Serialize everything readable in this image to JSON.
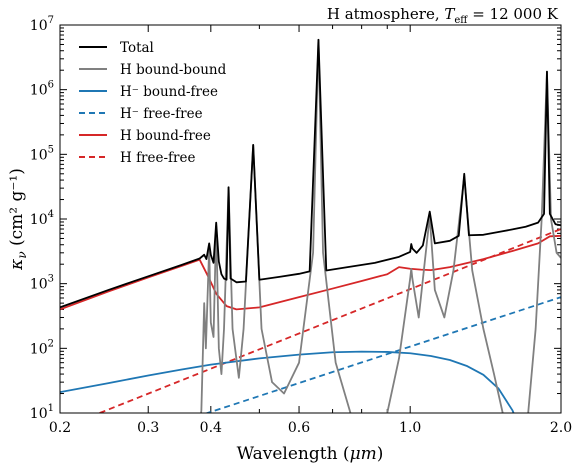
{
  "chart_data": {
    "type": "line",
    "title_prefix": "H atmosphere, ",
    "title_var": "T",
    "title_sub": "eff",
    "title_value": " = 12 000 K",
    "xlabel_prefix": "Wavelength (",
    "xlabel_unit": "μm",
    "xlabel_suffix": ")",
    "ylabel_var": "κ",
    "ylabel_sub": "ν",
    "ylabel_unit": "(cm² g⁻¹)",
    "xscale": "log",
    "yscale": "log",
    "xlim": [
      0.2,
      2.0
    ],
    "ylim": [
      10,
      10000000
    ],
    "x_ticks": [
      0.2,
      0.3,
      0.4,
      0.6,
      1.0,
      2.0
    ],
    "x_tick_labels": [
      "0.2",
      "0.3",
      "0.4",
      "0.6",
      "1.0",
      "2.0"
    ],
    "y_ticks": [
      10,
      100,
      1000,
      10000,
      100000,
      1000000,
      10000000
    ],
    "y_tick_mantissa": "10",
    "y_tick_exponents": [
      "1",
      "2",
      "3",
      "4",
      "5",
      "6",
      "7"
    ],
    "legend_position": "upper-left",
    "series": [
      {
        "name": "Total",
        "color": "#000000",
        "dash": "solid",
        "points": [
          [
            0.2,
            430
          ],
          [
            0.25,
            800
          ],
          [
            0.3,
            1300
          ],
          [
            0.35,
            1950
          ],
          [
            0.38,
            2450
          ],
          [
            0.388,
            2800
          ],
          [
            0.392,
            2400
          ],
          [
            0.397,
            4200
          ],
          [
            0.4,
            2800
          ],
          [
            0.405,
            2100
          ],
          [
            0.41,
            8800
          ],
          [
            0.415,
            2200
          ],
          [
            0.42,
            1400
          ],
          [
            0.425,
            1200
          ],
          [
            0.43,
            1150
          ],
          [
            0.434,
            31000
          ],
          [
            0.438,
            1200
          ],
          [
            0.45,
            1050
          ],
          [
            0.47,
            1080
          ],
          [
            0.486,
            140000
          ],
          [
            0.5,
            1150
          ],
          [
            0.55,
            1280
          ],
          [
            0.6,
            1420
          ],
          [
            0.63,
            1550
          ],
          [
            0.656,
            5900000
          ],
          [
            0.68,
            1600
          ],
          [
            0.75,
            1800
          ],
          [
            0.85,
            2100
          ],
          [
            0.95,
            2600
          ],
          [
            1.0,
            3100
          ],
          [
            1.005,
            4100
          ],
          [
            1.01,
            3500
          ],
          [
            1.03,
            3000
          ],
          [
            1.06,
            3900
          ],
          [
            1.094,
            13000
          ],
          [
            1.12,
            4200
          ],
          [
            1.2,
            4600
          ],
          [
            1.25,
            5500
          ],
          [
            1.282,
            50000
          ],
          [
            1.31,
            5600
          ],
          [
            1.4,
            5700
          ],
          [
            1.5,
            6300
          ],
          [
            1.6,
            6900
          ],
          [
            1.7,
            7600
          ],
          [
            1.8,
            8800
          ],
          [
            1.85,
            12000
          ],
          [
            1.875,
            1900000
          ],
          [
            1.9,
            12000
          ],
          [
            1.95,
            8300
          ],
          [
            2.0,
            8000
          ]
        ]
      },
      {
        "name": "H bound-bound",
        "color": "#808080",
        "dash": "solid",
        "points": [
          [
            0.37,
            1
          ],
          [
            0.383,
            11
          ],
          [
            0.388,
            500
          ],
          [
            0.391,
            100
          ],
          [
            0.397,
            3600
          ],
          [
            0.4,
            250
          ],
          [
            0.405,
            150
          ],
          [
            0.41,
            7800
          ],
          [
            0.415,
            100
          ],
          [
            0.42,
            40
          ],
          [
            0.425,
            200
          ],
          [
            0.434,
            31000
          ],
          [
            0.442,
            200
          ],
          [
            0.455,
            35
          ],
          [
            0.465,
            200
          ],
          [
            0.486,
            140000
          ],
          [
            0.505,
            200
          ],
          [
            0.53,
            30
          ],
          [
            0.56,
            20
          ],
          [
            0.6,
            60
          ],
          [
            0.64,
            3000
          ],
          [
            0.656,
            5900000
          ],
          [
            0.67,
            3000
          ],
          [
            0.71,
            60
          ],
          [
            0.76,
            10
          ],
          [
            0.8,
            1
          ],
          [
            0.88,
            1
          ],
          [
            0.9,
            10
          ],
          [
            0.95,
            70
          ],
          [
            1.0,
            1200
          ],
          [
            1.005,
            1700
          ],
          [
            1.01,
            1200
          ],
          [
            1.04,
            300
          ],
          [
            1.094,
            11000
          ],
          [
            1.12,
            800
          ],
          [
            1.17,
            300
          ],
          [
            1.22,
            1600
          ],
          [
            1.282,
            45000
          ],
          [
            1.33,
            1600
          ],
          [
            1.4,
            200
          ],
          [
            1.47,
            40
          ],
          [
            1.53,
            10
          ],
          [
            1.6,
            1
          ],
          [
            1.68,
            1
          ],
          [
            1.72,
            10
          ],
          [
            1.78,
            200
          ],
          [
            1.83,
            10000
          ],
          [
            1.875,
            1900000
          ],
          [
            1.91,
            10000
          ],
          [
            1.96,
            3000
          ],
          [
            2.0,
            2500
          ]
        ]
      },
      {
        "name": "H⁻ bound-free",
        "color": "#1f77b4",
        "dash": "solid",
        "points": [
          [
            0.2,
            21
          ],
          [
            0.25,
            29
          ],
          [
            0.3,
            38
          ],
          [
            0.35,
            47
          ],
          [
            0.4,
            56
          ],
          [
            0.5,
            70
          ],
          [
            0.6,
            80
          ],
          [
            0.7,
            87
          ],
          [
            0.8,
            89
          ],
          [
            0.9,
            88
          ],
          [
            1.0,
            84
          ],
          [
            1.1,
            76
          ],
          [
            1.2,
            66
          ],
          [
            1.3,
            53
          ],
          [
            1.4,
            39
          ],
          [
            1.5,
            24
          ],
          [
            1.6,
            11
          ],
          [
            1.64,
            7
          ]
        ]
      },
      {
        "name": "H⁻ free-free",
        "color": "#1f77b4",
        "dash": "dashed",
        "points": [
          [
            0.3,
            5
          ],
          [
            2.0,
            620
          ]
        ]
      },
      {
        "name": "H bound-free",
        "color": "#d62728",
        "dash": "solid",
        "points": [
          [
            0.2,
            400
          ],
          [
            0.25,
            760
          ],
          [
            0.3,
            1250
          ],
          [
            0.35,
            1880
          ],
          [
            0.38,
            2350
          ],
          [
            0.395,
            1300
          ],
          [
            0.41,
            700
          ],
          [
            0.43,
            450
          ],
          [
            0.45,
            400
          ],
          [
            0.5,
            430
          ],
          [
            0.6,
            620
          ],
          [
            0.7,
            840
          ],
          [
            0.8,
            1100
          ],
          [
            0.9,
            1400
          ],
          [
            0.95,
            1800
          ],
          [
            1.0,
            1700
          ],
          [
            1.05,
            1650
          ],
          [
            1.1,
            1620
          ],
          [
            1.2,
            1800
          ],
          [
            1.4,
            2400
          ],
          [
            1.6,
            3200
          ],
          [
            1.8,
            4200
          ],
          [
            1.9,
            5400
          ],
          [
            2.0,
            5500
          ]
        ]
      },
      {
        "name": "H free-free",
        "color": "#d62728",
        "dash": "dashed",
        "points": [
          [
            0.24,
            10
          ],
          [
            2.0,
            7000
          ]
        ]
      }
    ]
  }
}
